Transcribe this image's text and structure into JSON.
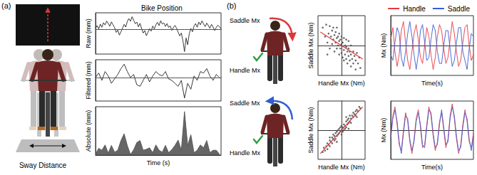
{
  "panel_labels": [
    "(a)",
    "(b)"
  ],
  "illustrations": {
    "a": {
      "label": "Sway Distance"
    },
    "b": [
      {
        "saddle": "Saddle Mx",
        "handle": "Handle Mx",
        "arrow_color": "#d93a3a"
      },
      {
        "saddle": "Saddle Mx",
        "handle": "Handle Mx",
        "arrow_color": "#2f5fd0"
      }
    ]
  },
  "chart_data": [
    {
      "type": "line",
      "title": "Bike Position",
      "ylabel": "Raw (mm)",
      "x": [
        0,
        1,
        2,
        3,
        4,
        5,
        6,
        7,
        8,
        9,
        10,
        11,
        12,
        13,
        14,
        15,
        16,
        17,
        18,
        19,
        20,
        21,
        22,
        23,
        24,
        25,
        26,
        27,
        28,
        29,
        30,
        31,
        32,
        33,
        34,
        35,
        36,
        37,
        38,
        39,
        40,
        41,
        42,
        43,
        44,
        45,
        46,
        47,
        48,
        49,
        50,
        51,
        52,
        53,
        54,
        55,
        56,
        57,
        58,
        59,
        60,
        61,
        62,
        63,
        64,
        65,
        66,
        67,
        68,
        69,
        70,
        71,
        72,
        73,
        74,
        75,
        76,
        77,
        78,
        79
      ],
      "series": [
        {
          "color": "#222222",
          "values": [
            0.5,
            1.8,
            0.2,
            2.5,
            1.0,
            3.2,
            2.1,
            4.0,
            2.8,
            1.5,
            3.6,
            2.2,
            0.8,
            -1.5,
            -0.4,
            -2.8,
            -1.2,
            0.6,
            2.4,
            1.1,
            3.8,
            5.2,
            3.9,
            6.1,
            4.4,
            2.7,
            3.5,
            1.2,
            2.9,
            0.4,
            -1.8,
            -0.6,
            -3.1,
            -1.5,
            0.3,
            -0.9,
            1.6,
            0.2,
            2.2,
            3.4,
            1.8,
            4.2,
            2.6,
            3.1,
            1.4,
            2.8,
            0.9,
            1.7,
            -0.5,
            0.8,
            1.9,
            0.6,
            -1.4,
            -3.2,
            -1.8,
            -5.5,
            -10.8,
            -4.2,
            -7.5,
            -2.1,
            0.4,
            -1.2,
            1.5,
            2.8,
            1.0,
            3.5,
            2.2,
            4.1,
            2.6,
            1.3,
            3.0,
            1.8,
            0.5,
            2.4,
            1.1,
            -0.6,
            0.9,
            2.0,
            1.2,
            0.3
          ]
        }
      ],
      "hline": 0,
      "xlim": [
        0,
        79
      ],
      "xticks": [],
      "ylim": [
        -12,
        8
      ],
      "yticks": [],
      "grid": false,
      "tick_labels": false
    },
    {
      "type": "line",
      "ylabel": "Filtered (mm)",
      "x": [
        0,
        2,
        4,
        6,
        8,
        10,
        12,
        14,
        16,
        18,
        20,
        22,
        24,
        26,
        28,
        30,
        32,
        34,
        36,
        38,
        40,
        42,
        44,
        46,
        48,
        50,
        52,
        54,
        56,
        58,
        60,
        62,
        64,
        66,
        68,
        70,
        72,
        74,
        76,
        78
      ],
      "series": [
        {
          "color": "#222222",
          "values": [
            0,
            1.5,
            -1,
            2,
            0.5,
            -2,
            -0.5,
            1,
            3,
            4.5,
            2,
            0,
            1,
            -2.5,
            -3,
            -1,
            1,
            -1.5,
            0.5,
            2,
            1,
            0.5,
            2,
            -0.5,
            -1,
            -2,
            -3,
            -1,
            -7,
            -2,
            -4,
            0.5,
            -1,
            2,
            1.5,
            3,
            0.5,
            -1,
            1,
            0
          ]
        }
      ],
      "hline": 0,
      "xlim": [
        0,
        79
      ],
      "xticks": [],
      "ylim": [
        -8,
        6
      ],
      "yticks": [],
      "grid": false,
      "tick_labels": false
    },
    {
      "type": "area",
      "ylabel": "Absolute (mm)",
      "xlabel": "Time (s)",
      "x": [
        0,
        2,
        4,
        6,
        8,
        10,
        12,
        14,
        16,
        18,
        20,
        22,
        24,
        26,
        28,
        30,
        32,
        34,
        36,
        38,
        40,
        42,
        44,
        46,
        48,
        50,
        52,
        54,
        56,
        58,
        60,
        62,
        64,
        66,
        68,
        70,
        72,
        74,
        76,
        78
      ],
      "series": [
        {
          "color": "#555555",
          "values": [
            0.2,
            1.4,
            1.0,
            2.1,
            0.4,
            2.0,
            0.6,
            1.0,
            3.0,
            4.4,
            2.0,
            0.1,
            1.1,
            2.6,
            3.0,
            1.0,
            1.2,
            1.5,
            0.5,
            2.1,
            1.0,
            0.6,
            2.0,
            0.5,
            1.1,
            2.0,
            3.1,
            1.0,
            9.0,
            2.0,
            4.2,
            0.5,
            1.0,
            2.1,
            1.5,
            3.0,
            0.5,
            1.0,
            1.0,
            0.2
          ]
        }
      ],
      "xlim": [
        0,
        79
      ],
      "xticks": [],
      "ylim": [
        0,
        10
      ],
      "yticks": [],
      "grid": false,
      "tick_labels": false
    },
    {
      "type": "scatter",
      "xlabel": "Handle Mx (Nm)",
      "ylabel": "Saddle Mx (Nm)",
      "series": [
        {
          "type": "scatter",
          "color": "#555555",
          "values": [
            [
              -8,
              6
            ],
            [
              -7,
              3
            ],
            [
              -6.5,
              7
            ],
            [
              -6,
              1
            ],
            [
              -5.5,
              4
            ],
            [
              -5,
              6.5
            ],
            [
              -5,
              -1
            ],
            [
              -4.5,
              3
            ],
            [
              -4,
              5
            ],
            [
              -4,
              0.5
            ],
            [
              -3.5,
              2
            ],
            [
              -3.5,
              6
            ],
            [
              -3,
              -2
            ],
            [
              -3,
              3.5
            ],
            [
              -2.5,
              1
            ],
            [
              -2.5,
              4.5
            ],
            [
              -2,
              -1
            ],
            [
              -2,
              2.5
            ],
            [
              -2,
              6
            ],
            [
              -1.5,
              0
            ],
            [
              -1.5,
              3
            ],
            [
              -1,
              -3
            ],
            [
              -1,
              1.5
            ],
            [
              -1,
              4
            ],
            [
              -0.5,
              -1
            ],
            [
              -0.5,
              2
            ],
            [
              0,
              0.5
            ],
            [
              0,
              -2.5
            ],
            [
              0,
              3
            ],
            [
              0.5,
              -4
            ],
            [
              0.5,
              1
            ],
            [
              1,
              -1.5
            ],
            [
              1,
              2.5
            ],
            [
              1,
              -5
            ],
            [
              1.5,
              0
            ],
            [
              1.5,
              -3
            ],
            [
              2,
              -0.5
            ],
            [
              2,
              -4.5
            ],
            [
              2,
              2
            ],
            [
              2.5,
              -2
            ],
            [
              2.5,
              -6
            ],
            [
              3,
              -1
            ],
            [
              3,
              -3.5
            ],
            [
              3,
              1.5
            ],
            [
              3.5,
              -5
            ],
            [
              3.5,
              -2
            ],
            [
              4,
              -7
            ],
            [
              4,
              -3
            ],
            [
              4,
              0
            ],
            [
              4.5,
              -4.5
            ],
            [
              5,
              -2
            ],
            [
              5,
              -6
            ],
            [
              5.5,
              -3.5
            ],
            [
              6,
              -5
            ],
            [
              6,
              -8
            ],
            [
              6.5,
              -2.5
            ],
            [
              7,
              -6
            ],
            [
              7.5,
              -4
            ],
            [
              8,
              -7.5
            ],
            [
              -6,
              -3
            ]
          ]
        },
        {
          "type": "line",
          "color": "#e03a3a",
          "values": [
            [
              -9,
              4.5
            ],
            [
              9,
              -4.5
            ]
          ]
        }
      ],
      "xlim": [
        -10,
        10
      ],
      "xticks": [],
      "ylim": [
        -10,
        10
      ],
      "yticks": [],
      "grid": false,
      "tick_labels": false
    },
    {
      "type": "scatter",
      "xlabel": "Handle Mx (Nm)",
      "ylabel": "Saddle Mx (Nm)",
      "series": [
        {
          "type": "scatter",
          "color": "#555555",
          "values": [
            [
              -8,
              -7.5
            ],
            [
              -7.5,
              -6
            ],
            [
              -7,
              -7
            ],
            [
              -6.5,
              -5.5
            ],
            [
              -6,
              -6.5
            ],
            [
              -6,
              -4.5
            ],
            [
              -5.5,
              -5
            ],
            [
              -5,
              -3.5
            ],
            [
              -5,
              -5.5
            ],
            [
              -4.5,
              -4
            ],
            [
              -4,
              -2.5
            ],
            [
              -4,
              -4.5
            ],
            [
              -3.5,
              -3
            ],
            [
              -3.5,
              -1.5
            ],
            [
              -3,
              -3.5
            ],
            [
              -3,
              -2
            ],
            [
              -2.5,
              -1
            ],
            [
              -2.5,
              -3
            ],
            [
              -2,
              -2
            ],
            [
              -2,
              -0.5
            ],
            [
              -1.5,
              -1.5
            ],
            [
              -1.5,
              0
            ],
            [
              -1,
              -1
            ],
            [
              -1,
              0.5
            ],
            [
              -0.5,
              -0.5
            ],
            [
              -0.5,
              1
            ],
            [
              0,
              0
            ],
            [
              0,
              1.5
            ],
            [
              0,
              -1.5
            ],
            [
              0.5,
              1
            ],
            [
              0.5,
              -0.5
            ],
            [
              1,
              2
            ],
            [
              1,
              0
            ],
            [
              1.5,
              1.5
            ],
            [
              1.5,
              0.5
            ],
            [
              2,
              3
            ],
            [
              2,
              1
            ],
            [
              2.5,
              2
            ],
            [
              2.5,
              3.5
            ],
            [
              3,
              2.5
            ],
            [
              3,
              4
            ],
            [
              3.5,
              3
            ],
            [
              3.5,
              5
            ],
            [
              4,
              4
            ],
            [
              4,
              2.5
            ],
            [
              4.5,
              5
            ],
            [
              5,
              4.5
            ],
            [
              5,
              6
            ],
            [
              5.5,
              5.5
            ],
            [
              6,
              6.5
            ],
            [
              6,
              5
            ],
            [
              6.5,
              7
            ],
            [
              7,
              6.5
            ],
            [
              7.5,
              8
            ],
            [
              8,
              7.5
            ],
            [
              -5,
              -2.5
            ],
            [
              2,
              4.5
            ],
            [
              -2,
              -4
            ],
            [
              6.5,
              4.5
            ],
            [
              3,
              0.5
            ]
          ]
        },
        {
          "type": "line",
          "color": "#e03a3a",
          "values": [
            [
              -9,
              -8
            ],
            [
              9,
              8
            ]
          ]
        }
      ],
      "xlim": [
        -10,
        10
      ],
      "xticks": [],
      "ylim": [
        -10,
        10
      ],
      "yticks": [],
      "grid": false,
      "tick_labels": false
    },
    {
      "type": "line",
      "xlabel": "Time(s)",
      "ylabel": "Mx (Nm)",
      "x": [
        0,
        1,
        2,
        3,
        4,
        5,
        6,
        7,
        8,
        9,
        10,
        11,
        12,
        13,
        14,
        15,
        16,
        17,
        18,
        19,
        20,
        21,
        22,
        23,
        24,
        25,
        26,
        27,
        28,
        29,
        30,
        31,
        32,
        33,
        34,
        35,
        36,
        37,
        38,
        39
      ],
      "series": [
        {
          "name": "Handle",
          "color": "#e8383d",
          "values": [
            2,
            6,
            -2,
            -7,
            -3,
            5,
            8,
            1,
            -5,
            -8,
            -2,
            4,
            7,
            2,
            -4,
            -6,
            0,
            6,
            3,
            -3,
            -8,
            -4,
            3,
            7,
            5,
            -1,
            -6,
            -4,
            2,
            8,
            4,
            -2,
            -7,
            -5,
            1,
            6,
            7,
            0,
            -5,
            -3
          ]
        },
        {
          "name": "Saddle",
          "color": "#3b5bd6",
          "values": [
            -3,
            -5,
            1,
            6,
            4,
            -4,
            -7,
            -2,
            4,
            8,
            3,
            -3,
            -8,
            -3,
            5,
            7,
            1,
            -5,
            -4,
            2,
            7,
            5,
            -2,
            -6,
            -6,
            0,
            5,
            5,
            -1,
            -7,
            -5,
            1,
            6,
            6,
            -2,
            -5,
            -8,
            -1,
            4,
            3
          ]
        }
      ],
      "legend": "upper right",
      "xlim": [
        0,
        39
      ],
      "xticks": [],
      "ylim": [
        -10,
        10
      ],
      "yticks": [],
      "grid": false,
      "tick_labels": false
    },
    {
      "type": "line",
      "xlabel": "Time(s)",
      "ylabel": "Mx (Nm)",
      "x": [
        0,
        1,
        2,
        3,
        4,
        5,
        6,
        7,
        8,
        9,
        10,
        11,
        12,
        13,
        14,
        15,
        16,
        17,
        18,
        19,
        20,
        21,
        22,
        23,
        24,
        25,
        26,
        27,
        28,
        29,
        30,
        31,
        32,
        33,
        34,
        35,
        36,
        37,
        38,
        39
      ],
      "series": [
        {
          "name": "Handle",
          "color": "#e8383d",
          "values": [
            -2,
            5,
            8,
            2,
            -5,
            -7,
            0,
            6,
            3,
            -4,
            -8,
            -3,
            4,
            7,
            1,
            -6,
            -5,
            2,
            8,
            5,
            -2,
            -7,
            -4,
            3,
            6,
            0,
            -6,
            -3,
            5,
            9,
            4,
            -3,
            -8,
            -5,
            2,
            7,
            3,
            -4,
            -6,
            -1
          ]
        },
        {
          "name": "Saddle",
          "color": "#3b5bd6",
          "values": [
            -3,
            4,
            7,
            3,
            -4,
            -8,
            -1,
            5,
            4,
            -3,
            -7,
            -4,
            3,
            6,
            2,
            -5,
            -6,
            1,
            7,
            6,
            -1,
            -6,
            -5,
            2,
            7,
            1,
            -5,
            -4,
            4,
            8,
            5,
            -2,
            -7,
            -6,
            1,
            6,
            4,
            -3,
            -7,
            -2
          ]
        }
      ],
      "xlim": [
        0,
        39
      ],
      "xticks": [],
      "ylim": [
        -10,
        10
      ],
      "yticks": [],
      "grid": false,
      "tick_labels": false
    }
  ]
}
